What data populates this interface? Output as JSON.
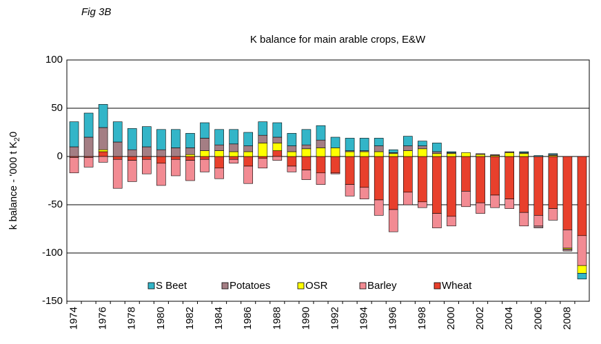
{
  "chart_data": {
    "type": "stacked_bar",
    "figure_label": "Fig 3B",
    "title": "K balance for main arable crops, E&W",
    "y_label": {
      "text": "k balance - '000 t K",
      "subscript": "2",
      "suffix": "0"
    },
    "categories": [
      "1974",
      null,
      "1976",
      null,
      "1978",
      null,
      "1980",
      null,
      "1982",
      null,
      "1984",
      null,
      "1986",
      null,
      "1988",
      null,
      "1990",
      null,
      "1992",
      null,
      "1994",
      null,
      "1996",
      null,
      "1998",
      null,
      "2000",
      null,
      "2002",
      null,
      "2004",
      null,
      "2006",
      null,
      "2008",
      null
    ],
    "ylim": [
      -150,
      100
    ],
    "yticks": [
      -150,
      -100,
      -50,
      0,
      50,
      100
    ],
    "grid": true,
    "legend": "bottom",
    "series": [
      {
        "name": "Wheat",
        "color": "#e8402c",
        "values": [
          -1,
          -1,
          5,
          -3,
          -4,
          -3,
          -7,
          -3,
          -4,
          -3,
          -12,
          -3,
          -10,
          -2,
          6,
          -10,
          -14,
          -17,
          -17,
          -29,
          -32,
          -45,
          -55,
          -37,
          -47,
          -59,
          -62,
          -36,
          -48,
          -40,
          -44,
          -58,
          -61,
          -54,
          -76,
          -82
        ]
      },
      {
        "name": "Barley",
        "color": "#f28b93",
        "values": [
          -16,
          -10,
          -6,
          -30,
          -22,
          -15,
          -23,
          -17,
          -21,
          -13,
          -11,
          -4,
          -18,
          -10,
          -4,
          -6,
          -10,
          -12,
          -1,
          -12,
          -12,
          -16,
          -23,
          -13,
          -6,
          -15,
          -10,
          -16,
          -11,
          -13,
          -10,
          -14,
          -11,
          -12,
          -19,
          -31
        ]
      },
      {
        "name": "OSR",
        "color": "#ffff00",
        "values": [
          0,
          0,
          2,
          0,
          0,
          0,
          0,
          0,
          2,
          6,
          6,
          5,
          5,
          14,
          8,
          5,
          8,
          9,
          9,
          5,
          5,
          5,
          3,
          6,
          8,
          3,
          3,
          4,
          2,
          1,
          4,
          3,
          0,
          1,
          -1,
          -8
        ]
      },
      {
        "name": "Potatoes",
        "color": "#a47e84",
        "values": [
          10,
          20,
          23,
          15,
          7,
          10,
          7,
          9,
          7,
          13,
          6,
          8,
          6,
          8,
          6,
          6,
          4,
          8,
          0,
          1,
          1,
          6,
          1,
          5,
          3,
          2,
          1,
          0,
          1,
          1,
          1,
          1,
          -2,
          1,
          -2,
          0
        ]
      },
      {
        "name": "S Beet",
        "color": "#33b5c8",
        "values": [
          26,
          25,
          24,
          21,
          22,
          21,
          21,
          19,
          15,
          16,
          16,
          15,
          14,
          14,
          15,
          13,
          16,
          15,
          11,
          13,
          13,
          8,
          3,
          10,
          5,
          9,
          1,
          0,
          0,
          0,
          0,
          1,
          1,
          1,
          0,
          -6
        ]
      }
    ]
  }
}
